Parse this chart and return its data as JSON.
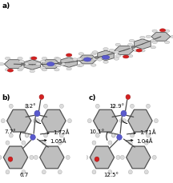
{
  "fig_width": 2.16,
  "fig_height": 2.29,
  "dpi": 100,
  "bg_color": "#ffffff",
  "panel_a_label": "a)",
  "panel_b_label": "b)",
  "panel_c_label": "c)",
  "bond_color": "#4a4a4a",
  "ring_face": "#b8b8b8",
  "ring_edge": "#505050",
  "atom_N": "#5a5acd",
  "atom_O": "#d42020",
  "atom_H": "#e0e0e0",
  "atom_C": "#909090",
  "atom_N_dark": "#3838a8",
  "atom_O_dark": "#a01010",
  "label_fontsize": 6.5,
  "ann_fontsize": 5.0,
  "panel_b": {
    "angle1_text": "3.2°",
    "angle2_text": "7.7°",
    "angle3_text": "6.7",
    "dist1_text": "1.72Å",
    "dist2_text": "1.05Å"
  },
  "panel_c": {
    "angle1_text": "12.9°",
    "angle2_text": "10.1°",
    "angle3_text": "12.5°",
    "dist1_text": "1.71Å",
    "dist2_text": "1.04Å"
  }
}
